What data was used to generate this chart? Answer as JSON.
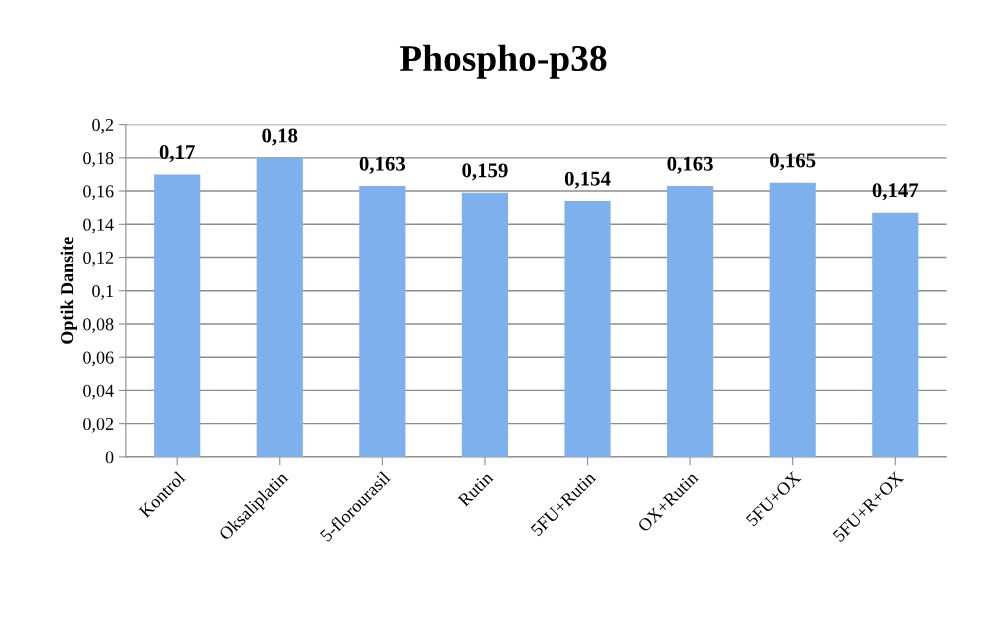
{
  "chart_data": {
    "type": "bar",
    "title": "Phospho-p38",
    "ylabel": "Optik Dansite",
    "categories": [
      "Kontrol",
      "Oksaliplatin",
      "5-florourasil",
      "Rutin",
      "5FU+Rutin",
      "OX+Rutin",
      "5FU+OX",
      "5FU+R+OX"
    ],
    "values": [
      0.17,
      0.18,
      0.163,
      0.159,
      0.154,
      0.163,
      0.165,
      0.147
    ],
    "value_labels": [
      "0,17",
      "0,18",
      "0,163",
      "0,159",
      "0,154",
      "0,163",
      "0,165",
      "0,147"
    ],
    "color": "#7eb0ee",
    "ylim": [
      0,
      0.2
    ],
    "yticks": [
      0,
      {
        "value": 0.02,
        "label": "0,02"
      },
      {
        "value": 0.04,
        "label": "0,04"
      },
      {
        "value": 0.06,
        "label": "0,06"
      },
      {
        "value": 0.08,
        "label": "0,08"
      },
      {
        "value": 0.1,
        "label": "0,1"
      },
      {
        "value": 0.12,
        "label": "0,12"
      },
      {
        "value": 0.14,
        "label": "0,14"
      },
      {
        "value": 0.16,
        "label": "0,16"
      },
      {
        "value": 0.18,
        "label": "0,18"
      },
      {
        "value": 0.2,
        "label": "0,2"
      }
    ],
    "grid": "y",
    "legend": false
  }
}
